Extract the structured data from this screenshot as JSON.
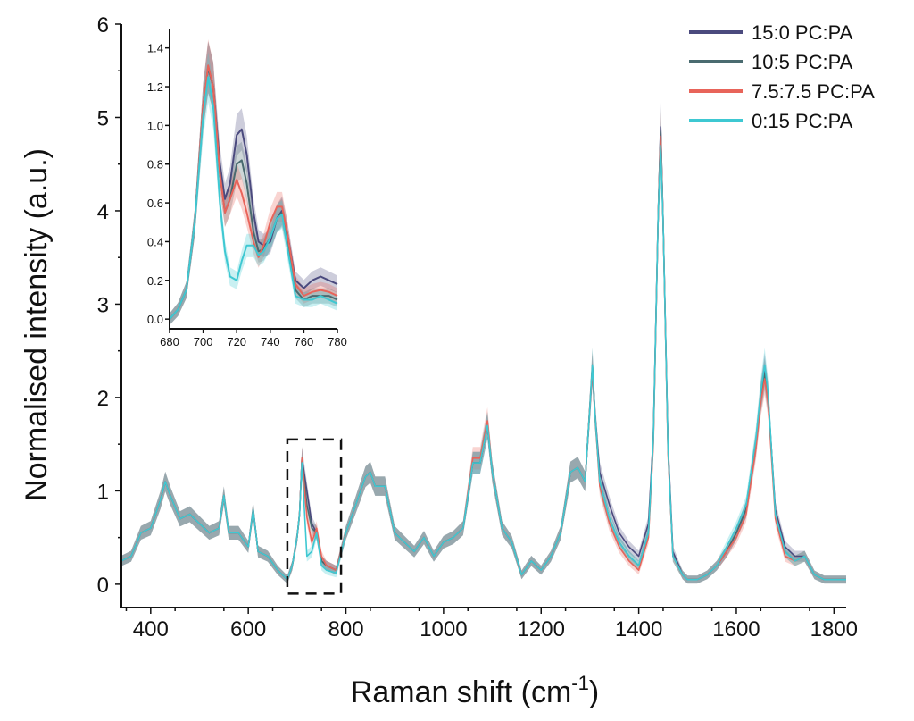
{
  "chart_data": {
    "type": "line",
    "xlabel": "Raman shift (cm",
    "xlabel_sup": "-1",
    "xlabel_tail": ")",
    "ylabel": "Normalised intensity (a.u.)",
    "xlim": [
      340,
      1825
    ],
    "ylim": [
      -0.25,
      6
    ],
    "xticks": [
      400,
      600,
      800,
      1000,
      1200,
      1400,
      1600,
      1800
    ],
    "yticks": [
      0,
      1,
      2,
      3,
      4,
      5,
      6
    ],
    "xtick_labels": [
      "400",
      "600",
      "800",
      "1000",
      "1200",
      "1400",
      "1600",
      "1800"
    ],
    "ytick_labels": [
      "0",
      "1",
      "2",
      "3",
      "4",
      "5",
      "6"
    ],
    "legend_position": "top-right",
    "highlight_box": {
      "x": [
        680,
        790
      ],
      "y": [
        -0.1,
        1.55
      ]
    },
    "series": [
      {
        "name": "15:0 PC:PA",
        "color": "#4b4a7e",
        "x": [
          340,
          360,
          380,
          400,
          420,
          430,
          440,
          460,
          480,
          500,
          520,
          540,
          550,
          560,
          580,
          600,
          610,
          620,
          640,
          660,
          680,
          690,
          700,
          705,
          710,
          720,
          730,
          740,
          750,
          760,
          780,
          800,
          820,
          840,
          850,
          860,
          880,
          900,
          920,
          940,
          960,
          980,
          1000,
          1020,
          1040,
          1060,
          1075,
          1090,
          1100,
          1120,
          1140,
          1160,
          1180,
          1200,
          1220,
          1240,
          1260,
          1275,
          1290,
          1300,
          1305,
          1310,
          1320,
          1340,
          1360,
          1380,
          1400,
          1420,
          1430,
          1440,
          1445,
          1450,
          1460,
          1470,
          1490,
          1500,
          1520,
          1540,
          1560,
          1580,
          1600,
          1620,
          1640,
          1650,
          1658,
          1665,
          1680,
          1700,
          1720,
          1740,
          1760,
          1780,
          1800,
          1825
        ],
        "y": [
          0.25,
          0.3,
          0.55,
          0.6,
          0.9,
          1.1,
          0.95,
          0.7,
          0.75,
          0.65,
          0.55,
          0.6,
          0.95,
          0.55,
          0.55,
          0.4,
          0.8,
          0.35,
          0.3,
          0.15,
          0.05,
          0.2,
          0.5,
          0.75,
          1.35,
          1.0,
          0.65,
          0.55,
          0.25,
          0.2,
          0.15,
          0.55,
          0.85,
          1.15,
          1.2,
          1.05,
          1.05,
          0.55,
          0.45,
          0.35,
          0.5,
          0.3,
          0.45,
          0.5,
          0.6,
          1.3,
          1.3,
          1.7,
          1.2,
          0.6,
          0.45,
          0.1,
          0.25,
          0.15,
          0.3,
          0.55,
          1.2,
          1.25,
          1.1,
          1.9,
          2.3,
          1.85,
          1.2,
          0.85,
          0.55,
          0.4,
          0.3,
          0.65,
          1.6,
          4.0,
          4.9,
          3.9,
          1.5,
          0.35,
          0.1,
          0.05,
          0.05,
          0.1,
          0.2,
          0.35,
          0.55,
          0.8,
          1.5,
          2.0,
          2.3,
          2.0,
          0.8,
          0.4,
          0.3,
          0.3,
          0.1,
          0.05,
          0.05,
          0.05
        ]
      },
      {
        "name": "10:5 PC:PA",
        "color": "#4a6b70",
        "x": [
          340,
          360,
          380,
          400,
          420,
          430,
          440,
          460,
          480,
          500,
          520,
          540,
          550,
          560,
          580,
          600,
          610,
          620,
          640,
          660,
          680,
          690,
          700,
          705,
          710,
          720,
          730,
          740,
          750,
          760,
          780,
          800,
          820,
          840,
          850,
          860,
          880,
          900,
          920,
          940,
          960,
          980,
          1000,
          1020,
          1040,
          1060,
          1075,
          1090,
          1100,
          1120,
          1140,
          1160,
          1180,
          1200,
          1220,
          1240,
          1260,
          1275,
          1290,
          1300,
          1305,
          1310,
          1320,
          1340,
          1360,
          1380,
          1400,
          1420,
          1430,
          1440,
          1445,
          1450,
          1460,
          1470,
          1490,
          1500,
          1520,
          1540,
          1560,
          1580,
          1600,
          1620,
          1640,
          1650,
          1658,
          1665,
          1680,
          1700,
          1720,
          1740,
          1760,
          1780,
          1800,
          1825
        ],
        "y": [
          0.25,
          0.3,
          0.55,
          0.6,
          0.9,
          1.1,
          0.95,
          0.7,
          0.75,
          0.65,
          0.55,
          0.6,
          0.95,
          0.55,
          0.55,
          0.4,
          0.8,
          0.35,
          0.3,
          0.15,
          0.05,
          0.2,
          0.5,
          0.75,
          1.35,
          0.85,
          0.6,
          0.55,
          0.25,
          0.2,
          0.15,
          0.55,
          0.85,
          1.15,
          1.2,
          1.05,
          1.05,
          0.55,
          0.45,
          0.35,
          0.5,
          0.3,
          0.45,
          0.5,
          0.6,
          1.3,
          1.3,
          1.7,
          1.2,
          0.6,
          0.45,
          0.1,
          0.25,
          0.15,
          0.3,
          0.55,
          1.2,
          1.25,
          1.1,
          1.9,
          2.35,
          1.85,
          1.1,
          0.7,
          0.45,
          0.3,
          0.2,
          0.55,
          1.55,
          4.0,
          4.85,
          3.9,
          1.45,
          0.3,
          0.1,
          0.05,
          0.05,
          0.1,
          0.2,
          0.35,
          0.55,
          0.8,
          1.5,
          2.0,
          2.25,
          2.0,
          0.75,
          0.35,
          0.25,
          0.3,
          0.1,
          0.05,
          0.05,
          0.05
        ]
      },
      {
        "name": "7.5:7.5 PC:PA",
        "color": "#e8645a",
        "x": [
          340,
          360,
          380,
          400,
          420,
          430,
          440,
          460,
          480,
          500,
          520,
          540,
          550,
          560,
          580,
          600,
          610,
          620,
          640,
          660,
          680,
          690,
          700,
          705,
          710,
          720,
          730,
          740,
          750,
          760,
          780,
          800,
          820,
          840,
          850,
          860,
          880,
          900,
          920,
          940,
          960,
          980,
          1000,
          1020,
          1040,
          1060,
          1075,
          1090,
          1100,
          1120,
          1140,
          1160,
          1180,
          1200,
          1220,
          1240,
          1260,
          1275,
          1290,
          1300,
          1305,
          1310,
          1320,
          1340,
          1360,
          1380,
          1400,
          1420,
          1430,
          1440,
          1445,
          1450,
          1460,
          1470,
          1490,
          1500,
          1520,
          1540,
          1560,
          1580,
          1600,
          1620,
          1640,
          1650,
          1658,
          1665,
          1680,
          1700,
          1720,
          1740,
          1760,
          1780,
          1800,
          1825
        ],
        "y": [
          0.25,
          0.3,
          0.55,
          0.6,
          0.9,
          1.1,
          0.95,
          0.7,
          0.75,
          0.65,
          0.55,
          0.6,
          0.95,
          0.55,
          0.55,
          0.4,
          0.8,
          0.35,
          0.3,
          0.15,
          0.05,
          0.2,
          0.5,
          0.75,
          1.35,
          0.72,
          0.45,
          0.6,
          0.3,
          0.2,
          0.15,
          0.55,
          0.85,
          1.15,
          1.2,
          1.05,
          1.05,
          0.55,
          0.45,
          0.35,
          0.5,
          0.3,
          0.45,
          0.5,
          0.6,
          1.35,
          1.35,
          1.75,
          1.2,
          0.6,
          0.45,
          0.1,
          0.25,
          0.15,
          0.3,
          0.55,
          1.2,
          1.25,
          1.1,
          1.9,
          2.3,
          1.85,
          1.05,
          0.65,
          0.4,
          0.25,
          0.15,
          0.5,
          1.5,
          4.0,
          4.8,
          3.9,
          1.4,
          0.3,
          0.1,
          0.05,
          0.05,
          0.1,
          0.2,
          0.35,
          0.5,
          0.75,
          1.45,
          1.95,
          2.2,
          1.95,
          0.7,
          0.3,
          0.25,
          0.3,
          0.1,
          0.05,
          0.05,
          0.05
        ]
      },
      {
        "name": "0:15 PC:PA",
        "color": "#3ec8d2",
        "x": [
          340,
          360,
          380,
          400,
          420,
          430,
          440,
          460,
          480,
          500,
          520,
          540,
          550,
          560,
          580,
          600,
          610,
          620,
          640,
          660,
          680,
          690,
          700,
          705,
          710,
          720,
          730,
          740,
          750,
          760,
          780,
          800,
          820,
          840,
          850,
          860,
          880,
          900,
          920,
          940,
          960,
          980,
          1000,
          1020,
          1040,
          1060,
          1075,
          1090,
          1100,
          1120,
          1140,
          1160,
          1180,
          1200,
          1220,
          1240,
          1260,
          1275,
          1290,
          1300,
          1305,
          1310,
          1320,
          1340,
          1360,
          1380,
          1400,
          1420,
          1430,
          1440,
          1445,
          1450,
          1460,
          1470,
          1490,
          1500,
          1520,
          1540,
          1560,
          1580,
          1600,
          1620,
          1640,
          1650,
          1658,
          1665,
          1680,
          1700,
          1720,
          1740,
          1760,
          1780,
          1800,
          1825
        ],
        "y": [
          0.25,
          0.3,
          0.55,
          0.6,
          0.9,
          1.1,
          0.95,
          0.7,
          0.75,
          0.65,
          0.55,
          0.6,
          0.95,
          0.55,
          0.55,
          0.4,
          0.8,
          0.35,
          0.3,
          0.15,
          0.05,
          0.2,
          0.5,
          0.75,
          1.3,
          0.3,
          0.35,
          0.55,
          0.2,
          0.15,
          0.12,
          0.55,
          0.85,
          1.15,
          1.2,
          1.05,
          1.05,
          0.55,
          0.45,
          0.35,
          0.5,
          0.3,
          0.45,
          0.5,
          0.6,
          1.3,
          1.3,
          1.7,
          1.2,
          0.6,
          0.45,
          0.1,
          0.25,
          0.15,
          0.3,
          0.55,
          1.2,
          1.25,
          1.1,
          1.9,
          2.35,
          1.85,
          1.1,
          0.7,
          0.45,
          0.3,
          0.2,
          0.55,
          1.55,
          4.0,
          4.7,
          3.9,
          1.45,
          0.3,
          0.1,
          0.05,
          0.05,
          0.1,
          0.2,
          0.4,
          0.6,
          0.85,
          1.55,
          2.05,
          2.35,
          2.05,
          0.75,
          0.35,
          0.25,
          0.3,
          0.1,
          0.05,
          0.05,
          0.05
        ]
      }
    ],
    "inset": {
      "type": "line",
      "xlim": [
        680,
        780
      ],
      "ylim": [
        -0.05,
        1.5
      ],
      "xticks": [
        680,
        700,
        720,
        740,
        760,
        780
      ],
      "yticks": [
        0.0,
        0.2,
        0.4,
        0.6,
        0.8,
        1.0,
        1.2,
        1.4
      ],
      "xtick_labels": [
        "680",
        "700",
        "720",
        "740",
        "760",
        "780"
      ],
      "ytick_labels": [
        "0.0",
        "0.2",
        "0.4",
        "0.6",
        "0.8",
        "1.0",
        "1.2",
        "1.4"
      ],
      "series": [
        {
          "name": "15:0 PC:PA",
          "color": "#4b4a7e",
          "x": [
            680,
            685,
            690,
            695,
            700,
            703,
            706,
            710,
            713,
            716,
            720,
            723,
            726,
            730,
            733,
            736,
            740,
            744,
            747,
            750,
            755,
            760,
            765,
            770,
            775,
            780
          ],
          "y": [
            0.0,
            0.05,
            0.15,
            0.5,
            1.1,
            1.3,
            1.2,
            0.8,
            0.62,
            0.7,
            0.95,
            0.98,
            0.85,
            0.55,
            0.4,
            0.38,
            0.4,
            0.52,
            0.56,
            0.45,
            0.2,
            0.16,
            0.2,
            0.22,
            0.2,
            0.18
          ]
        },
        {
          "name": "10:5 PC:PA",
          "color": "#4a6b70",
          "x": [
            680,
            685,
            690,
            695,
            700,
            703,
            706,
            710,
            713,
            716,
            720,
            723,
            726,
            730,
            733,
            736,
            740,
            744,
            747,
            750,
            755,
            760,
            765,
            770,
            775,
            780
          ],
          "y": [
            0.0,
            0.05,
            0.15,
            0.5,
            1.1,
            1.3,
            1.2,
            0.75,
            0.55,
            0.62,
            0.8,
            0.82,
            0.7,
            0.45,
            0.35,
            0.36,
            0.42,
            0.52,
            0.55,
            0.42,
            0.15,
            0.1,
            0.12,
            0.12,
            0.12,
            0.1
          ]
        },
        {
          "name": "7.5:7.5 PC:PA",
          "color": "#e8645a",
          "x": [
            680,
            685,
            690,
            695,
            700,
            703,
            706,
            710,
            713,
            716,
            720,
            723,
            726,
            730,
            733,
            736,
            740,
            744,
            747,
            750,
            755,
            760,
            765,
            770,
            775,
            780
          ],
          "y": [
            0.0,
            0.05,
            0.15,
            0.5,
            1.1,
            1.31,
            1.2,
            0.75,
            0.55,
            0.62,
            0.72,
            0.65,
            0.55,
            0.4,
            0.32,
            0.38,
            0.5,
            0.58,
            0.58,
            0.45,
            0.18,
            0.12,
            0.14,
            0.15,
            0.14,
            0.12
          ]
        },
        {
          "name": "0:15 PC:PA",
          "color": "#3ec8d2",
          "x": [
            680,
            685,
            690,
            695,
            700,
            703,
            706,
            710,
            713,
            716,
            720,
            723,
            726,
            730,
            733,
            736,
            740,
            744,
            747,
            750,
            755,
            760,
            765,
            770,
            775,
            780
          ],
          "y": [
            0.0,
            0.05,
            0.15,
            0.5,
            1.05,
            1.25,
            1.1,
            0.6,
            0.35,
            0.22,
            0.2,
            0.3,
            0.38,
            0.38,
            0.33,
            0.35,
            0.42,
            0.52,
            0.54,
            0.38,
            0.12,
            0.1,
            0.1,
            0.12,
            0.1,
            0.08
          ]
        }
      ]
    }
  }
}
